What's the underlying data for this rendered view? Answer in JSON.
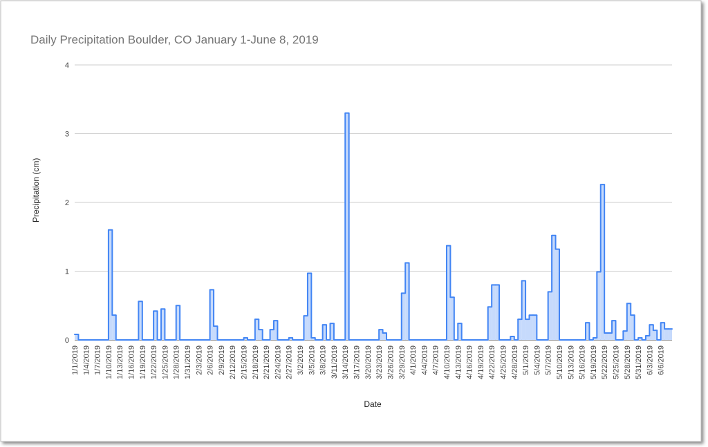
{
  "chart_data": {
    "type": "stepped-area",
    "title": "Daily Precipitation Boulder, CO January 1-June 8, 2019",
    "x_label": "Date",
    "y_label": "Precipitation (cm)",
    "color": "#4285f4",
    "fill": "#c6dafc",
    "grid": true,
    "ylim": [
      0,
      4
    ],
    "yticks": [
      0,
      1,
      2,
      3,
      4
    ],
    "categories": [
      "1/1/2019",
      null,
      null,
      "1/4/2019",
      null,
      null,
      "1/7/2019",
      null,
      null,
      "1/10/2019",
      null,
      null,
      "1/13/2019",
      null,
      null,
      "1/16/2019",
      null,
      null,
      "1/19/2019",
      null,
      null,
      "1/22/2019",
      null,
      null,
      "1/25/2019",
      null,
      null,
      "1/28/2019",
      null,
      null,
      "1/31/2019",
      null,
      null,
      "2/3/2019",
      null,
      null,
      "2/6/2019",
      null,
      null,
      "2/9/2019",
      null,
      null,
      "2/12/2019",
      null,
      null,
      "2/15/2019",
      null,
      null,
      "2/18/2019",
      null,
      null,
      "2/21/2019",
      null,
      null,
      "2/24/2019",
      null,
      null,
      "2/27/2019",
      null,
      null,
      "3/2/2019",
      null,
      null,
      "3/5/2019",
      null,
      null,
      "3/8/2019",
      null,
      null,
      "3/11/2019",
      null,
      null,
      "3/14/2019",
      null,
      null,
      "3/17/2019",
      null,
      null,
      "3/20/2019",
      null,
      null,
      "3/23/2019",
      null,
      null,
      "3/26/2019",
      null,
      null,
      "3/29/2019",
      null,
      null,
      "4/1/2019",
      null,
      null,
      "4/4/2019",
      null,
      null,
      "4/7/2019",
      null,
      null,
      "4/10/2019",
      null,
      null,
      "4/13/2019",
      null,
      null,
      "4/16/2019",
      null,
      null,
      "4/19/2019",
      null,
      null,
      "4/22/2019",
      null,
      null,
      "4/25/2019",
      null,
      null,
      "4/28/2019",
      null,
      null,
      "5/1/2019",
      null,
      null,
      "5/4/2019",
      null,
      null,
      "5/7/2019",
      null,
      null,
      "5/10/2019",
      null,
      null,
      "5/13/2019",
      null,
      null,
      "5/16/2019",
      null,
      null,
      "5/19/2019",
      null,
      null,
      "5/22/2019",
      null,
      null,
      "5/25/2019",
      null,
      null,
      "5/28/2019",
      null,
      null,
      "5/31/2019",
      null,
      null,
      "6/3/2019",
      null,
      null,
      "6/6/2019",
      null,
      null
    ],
    "values": [
      0.08,
      0,
      0,
      0,
      0,
      0,
      0,
      0,
      0,
      1.6,
      0.36,
      0,
      0,
      0,
      0,
      0,
      0,
      0.56,
      0,
      0,
      0,
      0.42,
      0,
      0.45,
      0,
      0,
      0,
      0.5,
      0,
      0,
      0,
      0,
      0,
      0,
      0,
      0,
      0.73,
      0.2,
      0,
      0,
      0,
      0,
      0,
      0,
      0,
      0.03,
      0,
      0,
      0.3,
      0.15,
      0,
      0,
      0.15,
      0.28,
      0,
      0,
      0,
      0.03,
      0,
      0,
      0,
      0.35,
      0.97,
      0.03,
      0,
      0,
      0.22,
      0,
      0.24,
      0,
      0,
      0,
      3.3,
      0,
      0,
      0,
      0,
      0,
      0,
      0,
      0,
      0.15,
      0.1,
      0,
      0,
      0,
      0,
      0.68,
      1.12,
      0,
      0,
      0,
      0,
      0,
      0,
      0,
      0,
      0,
      0,
      1.37,
      0.62,
      0,
      0.24,
      0,
      0,
      0,
      0,
      0,
      0,
      0,
      0.48,
      0.8,
      0.8,
      0,
      0,
      0,
      0.05,
      0,
      0.3,
      0.86,
      0.3,
      0.36,
      0.36,
      0,
      0,
      0,
      0.7,
      1.52,
      1.32,
      0,
      0,
      0,
      0,
      0,
      0,
      0,
      0.25,
      0,
      0.03,
      0.99,
      2.26,
      0.1,
      0.1,
      0.28,
      0,
      0,
      0.13,
      0.53,
      0.36,
      0,
      0.03,
      0,
      0.06,
      0.22,
      0.14,
      0,
      0.25,
      0.16,
      0.16
    ]
  }
}
